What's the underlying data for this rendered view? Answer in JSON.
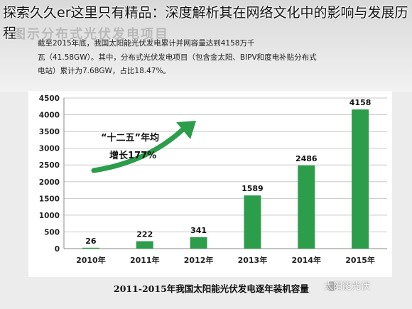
{
  "overlay_title": "探索久久er这里只有精品：深度解析其在网络文化中的影响与发展历程",
  "paragraph": {
    "line1": "截至2015年底，我国太阳能光伏发电累计并网容量达到4158万千",
    "line2": "瓦（41.58GW）。其中，分布式光伏发电项目（包含金太阳、BIPV和度电补贴分布式",
    "line3": "电站）累计为7.68GW，占比18.47%。"
  },
  "caption": "2011-2015年我国太阳能光伏发电逐年装机容量",
  "watermark": "太阳能光伏",
  "colors": {
    "bar": "#2c9d4a",
    "arrow": "#2c9d4a",
    "grid": "#c8c8c8"
  },
  "chart_data": {
    "type": "bar",
    "categories": [
      "2010年",
      "2011年",
      "2012年",
      "2013年",
      "2014年",
      "2015年"
    ],
    "values": [
      26,
      222,
      341,
      1589,
      2486,
      4158
    ],
    "ylim": [
      0,
      4500
    ],
    "yticks": [
      0,
      500,
      1000,
      1500,
      2000,
      2500,
      3000,
      3500,
      4000,
      4500
    ],
    "ylabel": "",
    "xlabel": "",
    "grid": true,
    "annotation": {
      "line1": "“十二五”年均",
      "line2": "增长177%"
    }
  }
}
